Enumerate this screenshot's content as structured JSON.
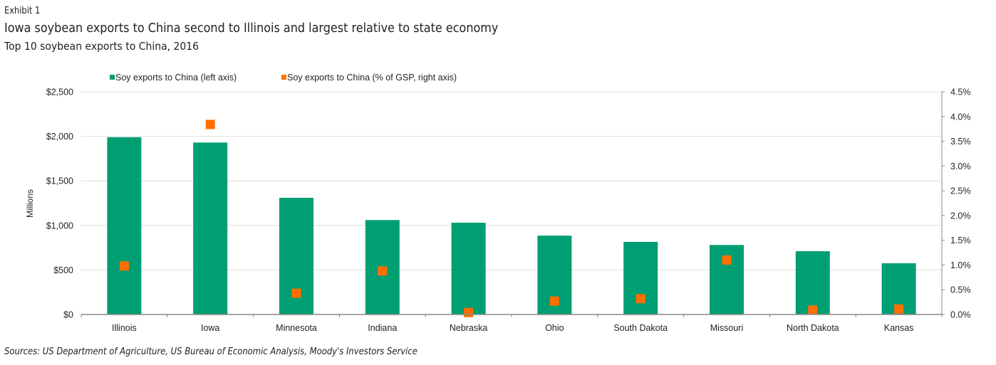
{
  "header": {
    "exhibit": "Exhibit 1",
    "title": "Iowa soybean exports to China second to Illinois and largest relative to state economy",
    "subtitle": "Top 10 soybean exports to China, 2016"
  },
  "footer": {
    "sources": "Sources: US Department of Agriculture, US Bureau of Economic Analysis, Moody's Investors Service"
  },
  "colors": {
    "bar": "#009e73",
    "marker": "#ff6f00",
    "grid": "#dddddd",
    "axis": "#888888"
  },
  "chart_data": {
    "type": "bar",
    "title": "Top 10 soybean exports to China, 2016",
    "categories": [
      "Illinois",
      "Iowa",
      "Minnesota",
      "Indiana",
      "Nebraska",
      "Ohio",
      "South Dakota",
      "Missouri",
      "North Dakota",
      "Kansas"
    ],
    "series": [
      {
        "name": "Soy exports to China (left axis)",
        "type": "bar",
        "axis": "left",
        "values": [
          1990,
          1930,
          1310,
          1060,
          1030,
          885,
          815,
          780,
          710,
          575
        ]
      },
      {
        "name": "Soy exports to China (% of GSP, right axis)",
        "type": "scatter",
        "axis": "right",
        "values": [
          0.98,
          3.84,
          0.43,
          0.88,
          0.04,
          0.27,
          0.32,
          1.1,
          0.09,
          0.11
        ]
      }
    ],
    "ylabel": "Millions",
    "ylim": [
      0,
      2500
    ],
    "yticks": [
      "$0",
      "$500",
      "$1,000",
      "$1,500",
      "$2,000",
      "$2,500"
    ],
    "y2lim": [
      0,
      4.5
    ],
    "y2ticks": [
      "0.0%",
      "0.5%",
      "1.0%",
      "1.5%",
      "2.0%",
      "2.5%",
      "3.0%",
      "3.5%",
      "4.0%",
      "4.5%"
    ],
    "grid": true,
    "legend": "top-left"
  }
}
